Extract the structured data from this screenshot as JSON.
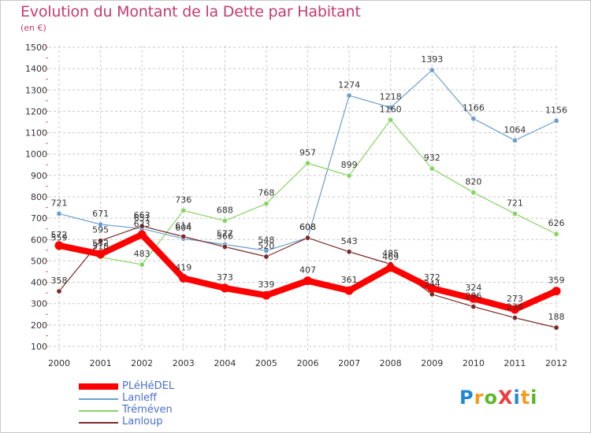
{
  "header": {
    "title": "Evolution du Montant de la Dette par Habitant",
    "subtitle": "(en €)"
  },
  "logo": {
    "text": "ProXiti",
    "colors": [
      "#1e88d8",
      "#f49c1b",
      "#5cb82a",
      "#ef3b3b",
      "#1e88d8",
      "#f49c1b",
      "#5cb82a"
    ]
  },
  "chart_data": {
    "type": "line",
    "x": [
      "2000",
      "2001",
      "2002",
      "2003",
      "2004",
      "2005",
      "2006",
      "2007",
      "2008",
      "2009",
      "2010",
      "2011",
      "2012"
    ],
    "ylim": [
      100,
      1500
    ],
    "yticks": [
      100,
      200,
      300,
      400,
      500,
      600,
      700,
      800,
      900,
      1000,
      1100,
      1200,
      1300,
      1400,
      1500
    ],
    "grid": true,
    "legend_position": "bottom-left",
    "series": [
      {
        "name": "PLéHéDEL",
        "color": "#ff0000",
        "values": [
          572,
          532,
          623,
          419,
          373,
          339,
          407,
          361,
          469,
          372,
          324,
          273,
          359
        ]
      },
      {
        "name": "Lanleff",
        "color": "#6a9fcf",
        "values": [
          721,
          671,
          651,
          604,
          577,
          548,
          608,
          1274,
          1218,
          1393,
          1166,
          1064,
          1156
        ]
      },
      {
        "name": "Tréméven",
        "color": "#88d462",
        "values": [
          559,
          518,
          483,
          736,
          688,
          768,
          957,
          899,
          1160,
          932,
          820,
          721,
          626
        ]
      },
      {
        "name": "Lanloup",
        "color": "#7a2a2a",
        "values": [
          358,
          595,
          663,
          614,
          566,
          520,
          608,
          543,
          485,
          344,
          286,
          234,
          188
        ]
      }
    ]
  }
}
